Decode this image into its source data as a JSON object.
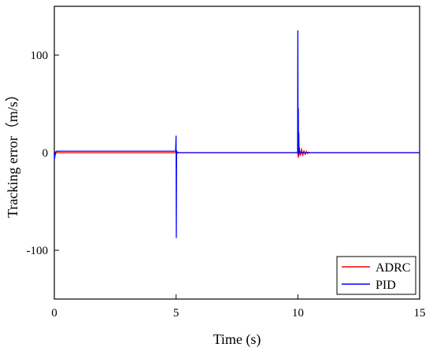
{
  "chart_data": {
    "type": "line",
    "xlabel": "Time (s)",
    "ylabel": "Tracking error（m/s）",
    "xlim": [
      0,
      15
    ],
    "ylim": [
      -150,
      150
    ],
    "x_ticks": [
      0,
      5,
      10,
      15
    ],
    "y_ticks": [
      100,
      0,
      -100
    ],
    "x_tick_labels": [
      "0",
      "5",
      "10",
      "15"
    ],
    "y_tick_labels": [
      "100",
      "0",
      "-100"
    ],
    "grid": false,
    "legend_position": "bottom-right",
    "series": [
      {
        "name": "ADRC",
        "color": "#ff0000",
        "x": [
          0,
          0.02,
          0.05,
          0.1,
          4.99,
          5.0,
          5.01,
          5.05,
          9.99,
          10.0,
          10.02,
          10.05,
          10.1,
          10.15,
          10.2,
          10.25,
          10.3,
          10.35,
          10.4,
          10.45,
          10.5,
          15
        ],
        "y": [
          0,
          -4,
          -1,
          0,
          0,
          0.5,
          -0.5,
          0,
          0,
          0,
          -5,
          3,
          -3,
          4,
          -3,
          2,
          -2,
          1.5,
          -1,
          0.5,
          0,
          0
        ]
      },
      {
        "name": "PID",
        "color": "#0000ff",
        "x": [
          0,
          0.01,
          0.03,
          0.06,
          0.1,
          0.3,
          4.98,
          5.0,
          5.01,
          5.02,
          5.03,
          5.06,
          5.1,
          5.5,
          9.99,
          10.0,
          10.01,
          10.02,
          10.03,
          10.04,
          10.05,
          10.06,
          10.07,
          10.1,
          10.15,
          10.2,
          10.3,
          15
        ],
        "y": [
          0,
          -6,
          -2,
          1,
          1.5,
          1.5,
          1.5,
          17,
          -87,
          2,
          -1,
          0.5,
          0,
          0,
          0,
          125,
          5,
          45,
          -2,
          20,
          -1,
          5,
          0,
          1,
          -0.5,
          0.3,
          0,
          0
        ]
      }
    ]
  }
}
